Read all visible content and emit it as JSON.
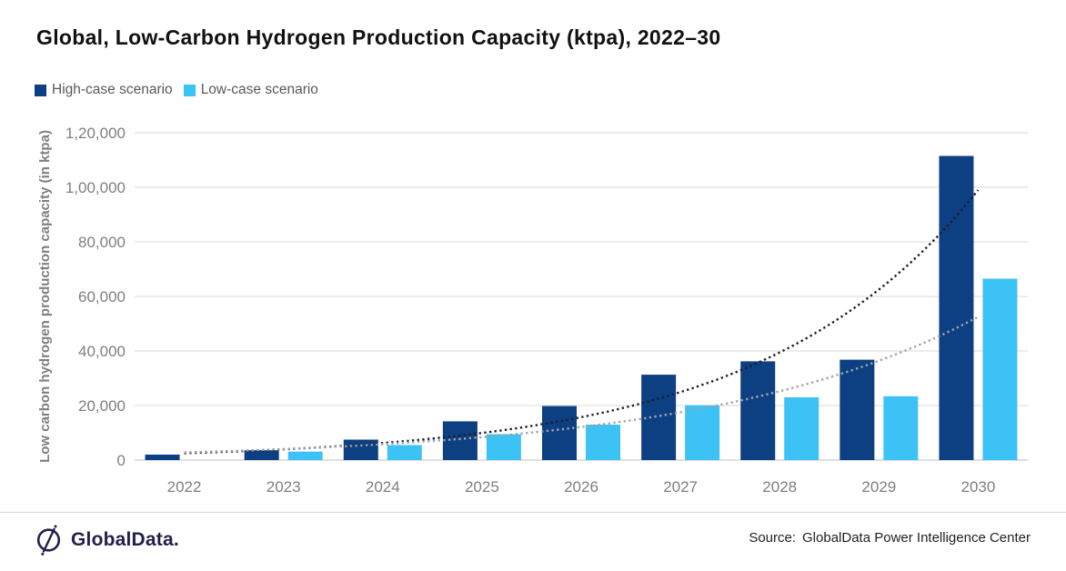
{
  "title": "Global, Low-Carbon Hydrogen Production Capacity (ktpa), 2022–30",
  "legend": {
    "items": [
      {
        "label": "High-case scenario",
        "color": "#0d3f83"
      },
      {
        "label": "Low-case scenario",
        "color": "#3dc2f5"
      }
    ]
  },
  "footer": {
    "logo_text": "GlobalData.",
    "source_label": "Source:",
    "source_text": "GlobalData Power Intelligence Center"
  },
  "chart_data": {
    "type": "bar",
    "title": "Global, Low-Carbon Hydrogen Production Capacity (ktpa), 2022–30",
    "xlabel": "",
    "ylabel": "Low carbon hydrogen production capacity (in ktpa)",
    "categories": [
      "2022",
      "2023",
      "2024",
      "2025",
      "2026",
      "2027",
      "2028",
      "2029",
      "2030"
    ],
    "series": [
      {
        "name": "High-case scenario",
        "color": "#0d3f83",
        "values": [
          2000,
          3600,
          7500,
          14200,
          19800,
          31300,
          36200,
          36800,
          111500
        ]
      },
      {
        "name": "Low-case scenario",
        "color": "#3dc2f5",
        "values": [
          0,
          3100,
          5500,
          9500,
          13000,
          20100,
          23000,
          23400,
          66500
        ]
      }
    ],
    "trendlines": [
      {
        "name": "High-case exponential trend",
        "type": "exponential",
        "style": "dotted",
        "color": "#1c1c30",
        "start": 2500,
        "end": 99000
      },
      {
        "name": "Low-case exponential trend",
        "type": "exponential",
        "style": "dotted",
        "color": "#a3a3a3",
        "start": 2800,
        "end": 52500
      }
    ],
    "ylim": [
      0,
      120000
    ],
    "ytick_step": 20000,
    "ytick_labels": [
      "0",
      "20,000",
      "40,000",
      "60,000",
      "80,000",
      "1,00,000",
      "1,20,000"
    ],
    "grid": true,
    "legend_position": "top-left"
  }
}
